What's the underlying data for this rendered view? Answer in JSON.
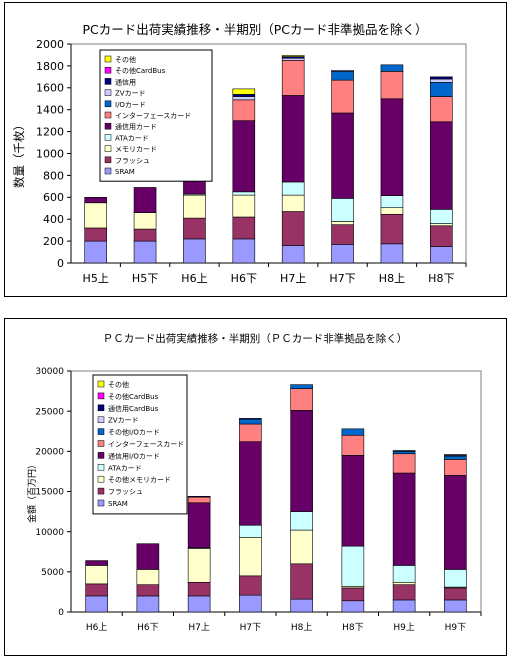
{
  "colors": {
    "SRAM": "#9999ff",
    "flash": "#993366",
    "memory_card": "#ffffcc",
    "ata": "#ccffff",
    "comm": "#660066",
    "interface": "#ff8080",
    "io": "#0066cc",
    "zv": "#ccccff",
    "comm_cardbus": "#000080",
    "other_cardbus": "#ff00ff",
    "other": "#ffff00"
  },
  "chart_data": [
    {
      "type": "bar",
      "stacked": true,
      "title": "PCカード出荷実績推移・半期別（PCカード非準拠品を除く）",
      "ylabel": "数量（千枚）",
      "ylim": [
        0,
        2000
      ],
      "yticks": [
        "0",
        "200",
        "400",
        "600",
        "800",
        "1000",
        "1200",
        "1400",
        "1600",
        "1800",
        "2000"
      ],
      "grid": false,
      "legend_position": "top-left",
      "categories": [
        "H5上",
        "H5下",
        "H6上",
        "H6下",
        "H7上",
        "H7下",
        "H8上",
        "H8下"
      ],
      "legend": [
        "その他",
        "その他CardBus",
        "通信用",
        "ZVカード",
        "I/Oカード",
        "インターフェースカード",
        "通信用カード",
        "ATAカード",
        "メモリカード",
        "フラッシュ",
        "SRAM"
      ],
      "series": [
        {
          "name": "SRAM",
          "key": "SRAM",
          "values": [
            200,
            200,
            220,
            220,
            160,
            170,
            175,
            150
          ]
        },
        {
          "name": "フラッシュ",
          "key": "flash",
          "values": [
            120,
            110,
            190,
            200,
            310,
            180,
            270,
            190
          ]
        },
        {
          "name": "メモリカード",
          "key": "memory_card",
          "values": [
            230,
            150,
            210,
            200,
            150,
            30,
            60,
            20
          ]
        },
        {
          "name": "ATAカード",
          "key": "ata",
          "values": [
            0,
            0,
            10,
            30,
            120,
            210,
            110,
            130
          ]
        },
        {
          "name": "通信用カード",
          "key": "comm",
          "values": [
            50,
            230,
            390,
            650,
            790,
            780,
            885,
            800
          ]
        },
        {
          "name": "インターフェースカード",
          "key": "interface",
          "values": [
            0,
            0,
            80,
            190,
            320,
            300,
            250,
            230
          ]
        },
        {
          "name": "I/Oカード",
          "key": "io",
          "values": [
            0,
            0,
            0,
            0,
            0,
            80,
            60,
            130
          ]
        },
        {
          "name": "ZVカード",
          "key": "zv",
          "values": [
            0,
            0,
            10,
            30,
            20,
            10,
            0,
            30
          ]
        },
        {
          "name": "通信用",
          "key": "comm_cardbus",
          "values": [
            0,
            0,
            10,
            20,
            15,
            0,
            0,
            20
          ]
        },
        {
          "name": "その他CardBus",
          "key": "other_cardbus",
          "values": [
            0,
            0,
            0,
            0,
            0,
            0,
            0,
            0
          ]
        },
        {
          "name": "その他",
          "key": "other",
          "values": [
            0,
            0,
            10,
            50,
            10,
            0,
            0,
            0
          ]
        }
      ]
    },
    {
      "type": "bar",
      "stacked": true,
      "title": "ＰＣカード出荷実績推移・半期別（ＰＣカード非準拠品を除く）",
      "ylabel": "金額（百万円）",
      "ylim": [
        0,
        30000
      ],
      "yticks": [
        "0",
        "5000",
        "10000",
        "15000",
        "20000",
        "25000",
        "30000"
      ],
      "grid": false,
      "legend_position": "top-left",
      "categories": [
        "H6上",
        "H6下",
        "H7上",
        "H7下",
        "H8上",
        "H8下",
        "H9上",
        "H9下"
      ],
      "legend": [
        "その他",
        "その他CardBus",
        "通信用CardBus",
        "ZVカード",
        "その他I/Oカード",
        "インターフェースカード",
        "通信用I/Oカード",
        "ATAカード",
        "その他メモリカード",
        "フラッシュ",
        "SRAM"
      ],
      "series": [
        {
          "name": "SRAM",
          "key": "SRAM",
          "values": [
            2000,
            2000,
            2000,
            2100,
            1600,
            1400,
            1500,
            1500
          ]
        },
        {
          "name": "フラッシュ",
          "key": "flash",
          "values": [
            1500,
            1400,
            1700,
            2400,
            4400,
            1600,
            1900,
            1500
          ]
        },
        {
          "name": "その他メモリカード",
          "key": "memory_card",
          "values": [
            2300,
            1900,
            4200,
            4800,
            4200,
            200,
            300,
            100
          ]
        },
        {
          "name": "ATAカード",
          "key": "ata",
          "values": [
            0,
            0,
            100,
            1500,
            2300,
            5000,
            2100,
            2200
          ]
        },
        {
          "name": "通信用I/Oカード",
          "key": "comm",
          "values": [
            600,
            3200,
            5600,
            10400,
            12600,
            11300,
            11500,
            11700
          ]
        },
        {
          "name": "インターフェースカード",
          "key": "interface",
          "values": [
            0,
            0,
            700,
            2200,
            2700,
            2500,
            2400,
            2000
          ]
        },
        {
          "name": "その他I/Oカード",
          "key": "io",
          "values": [
            0,
            0,
            0,
            600,
            500,
            800,
            300,
            400
          ]
        },
        {
          "name": "ZVカード",
          "key": "zv",
          "values": [
            0,
            0,
            0,
            0,
            0,
            0,
            0,
            100
          ]
        },
        {
          "name": "通信用CardBus",
          "key": "comm_cardbus",
          "values": [
            0,
            0,
            100,
            100,
            0,
            0,
            100,
            100
          ]
        },
        {
          "name": "その他CardBus",
          "key": "other_cardbus",
          "values": [
            0,
            0,
            0,
            0,
            0,
            0,
            0,
            0
          ]
        },
        {
          "name": "その他",
          "key": "other",
          "values": [
            0,
            0,
            0,
            0,
            0,
            0,
            0,
            0
          ]
        }
      ]
    }
  ]
}
